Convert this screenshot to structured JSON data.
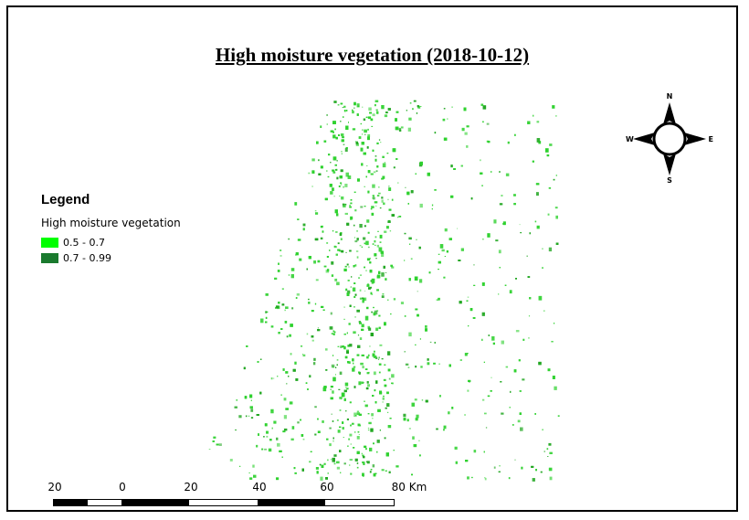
{
  "map": {
    "title": "High moisture vegetation (2018-10-12)"
  },
  "legend": {
    "heading": "Legend",
    "layer_name": "High moisture vegetation",
    "classes": [
      {
        "label": "0.5 - 0.7",
        "color": "#00ff00"
      },
      {
        "label": "0.7 - 0.99",
        "color": "#1a7a2e"
      }
    ]
  },
  "compass": {
    "north": "N",
    "south": "S",
    "east": "E",
    "west": "W"
  },
  "scale_bar": {
    "labels": [
      "20",
      "0",
      "20",
      "40",
      "60",
      "80 Km"
    ],
    "segment_colors": [
      "#000000",
      "#ffffff",
      "#000000",
      "#ffffff",
      "#000000",
      "#ffffff"
    ]
  },
  "colors": {
    "veg_light": "#2fd12f",
    "veg_dark": "#22a722",
    "frame": "#000000"
  }
}
